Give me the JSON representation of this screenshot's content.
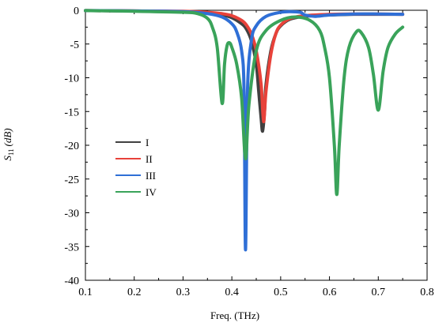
{
  "chart_data": {
    "type": "line",
    "title": "",
    "xlabel": "Freq. (THz)",
    "ylabel": {
      "main": "S",
      "sub": "11",
      "unit": "(dB)"
    },
    "xlim": [
      0.1,
      0.8
    ],
    "ylim": [
      -40,
      0
    ],
    "xticks": [
      0.1,
      0.2,
      0.3,
      0.4,
      0.5,
      0.6,
      0.7,
      0.8
    ],
    "yticks": [
      0,
      -5,
      -10,
      -15,
      -20,
      -25,
      -30,
      -35,
      -40
    ],
    "xtick_labels": [
      "0.1",
      "0.2",
      "0.3",
      "0.4",
      "0.5",
      "0.6",
      "0.7",
      "0.8"
    ],
    "ytick_labels": [
      "0",
      "-5",
      "-10",
      "-15",
      "-20",
      "-25",
      "-30",
      "-35",
      "-40"
    ],
    "grid": false,
    "legend_position": "left-center",
    "series": [
      {
        "name": "I",
        "color": "#404040",
        "points": [
          [
            0.1,
            -0.05
          ],
          [
            0.2,
            -0.1
          ],
          [
            0.3,
            -0.2
          ],
          [
            0.35,
            -0.4
          ],
          [
            0.38,
            -0.7
          ],
          [
            0.4,
            -1.1
          ],
          [
            0.42,
            -2.0
          ],
          [
            0.43,
            -2.8
          ],
          [
            0.44,
            -4.5
          ],
          [
            0.45,
            -8.0
          ],
          [
            0.455,
            -12.0
          ],
          [
            0.46,
            -16.0
          ],
          [
            0.463,
            -17.9
          ],
          [
            0.467,
            -15.0
          ],
          [
            0.47,
            -11.0
          ],
          [
            0.48,
            -6.0
          ],
          [
            0.49,
            -3.5
          ],
          [
            0.5,
            -2.3
          ],
          [
            0.52,
            -1.3
          ],
          [
            0.55,
            -0.9
          ],
          [
            0.6,
            -0.7
          ],
          [
            0.65,
            -0.6
          ],
          [
            0.7,
            -0.6
          ],
          [
            0.75,
            -0.6
          ]
        ]
      },
      {
        "name": "II",
        "color": "#e8423a",
        "points": [
          [
            0.1,
            -0.05
          ],
          [
            0.2,
            -0.1
          ],
          [
            0.3,
            -0.15
          ],
          [
            0.35,
            -0.3
          ],
          [
            0.38,
            -0.5
          ],
          [
            0.4,
            -0.8
          ],
          [
            0.42,
            -1.5
          ],
          [
            0.43,
            -2.2
          ],
          [
            0.44,
            -3.5
          ],
          [
            0.45,
            -6.0
          ],
          [
            0.46,
            -11.0
          ],
          [
            0.465,
            -16.5
          ],
          [
            0.47,
            -12.0
          ],
          [
            0.48,
            -6.5
          ],
          [
            0.49,
            -3.5
          ],
          [
            0.5,
            -2.2
          ],
          [
            0.52,
            -1.2
          ],
          [
            0.55,
            -0.8
          ],
          [
            0.6,
            -0.6
          ],
          [
            0.65,
            -0.55
          ],
          [
            0.7,
            -0.55
          ],
          [
            0.75,
            -0.6
          ]
        ]
      },
      {
        "name": "III",
        "color": "#2f6fd6",
        "points": [
          [
            0.1,
            -0.05
          ],
          [
            0.2,
            -0.1
          ],
          [
            0.3,
            -0.2
          ],
          [
            0.35,
            -0.5
          ],
          [
            0.38,
            -1.0
          ],
          [
            0.4,
            -2.0
          ],
          [
            0.41,
            -3.2
          ],
          [
            0.42,
            -6.0
          ],
          [
            0.425,
            -12.0
          ],
          [
            0.428,
            -35.5
          ],
          [
            0.432,
            -12.0
          ],
          [
            0.44,
            -4.5
          ],
          [
            0.45,
            -2.3
          ],
          [
            0.47,
            -0.9
          ],
          [
            0.5,
            -0.3
          ],
          [
            0.52,
            -0.2
          ],
          [
            0.54,
            -0.3
          ],
          [
            0.55,
            -0.7
          ],
          [
            0.57,
            -0.9
          ],
          [
            0.6,
            -0.7
          ],
          [
            0.65,
            -0.55
          ],
          [
            0.7,
            -0.55
          ],
          [
            0.75,
            -0.6
          ]
        ]
      },
      {
        "name": "IV",
        "color": "#3aa35a",
        "points": [
          [
            0.1,
            -0.05
          ],
          [
            0.2,
            -0.15
          ],
          [
            0.3,
            -0.3
          ],
          [
            0.33,
            -0.5
          ],
          [
            0.35,
            -1.2
          ],
          [
            0.36,
            -2.5
          ],
          [
            0.37,
            -5.5
          ],
          [
            0.38,
            -13.8
          ],
          [
            0.385,
            -8.0
          ],
          [
            0.39,
            -5.3
          ],
          [
            0.395,
            -4.8
          ],
          [
            0.4,
            -5.5
          ],
          [
            0.41,
            -8.0
          ],
          [
            0.42,
            -13.0
          ],
          [
            0.428,
            -22.0
          ],
          [
            0.435,
            -14.0
          ],
          [
            0.45,
            -6.0
          ],
          [
            0.47,
            -3.0
          ],
          [
            0.5,
            -1.5
          ],
          [
            0.53,
            -1.0
          ],
          [
            0.56,
            -1.5
          ],
          [
            0.58,
            -3.0
          ],
          [
            0.59,
            -5.5
          ],
          [
            0.6,
            -10.0
          ],
          [
            0.61,
            -20.0
          ],
          [
            0.615,
            -27.3
          ],
          [
            0.62,
            -20.0
          ],
          [
            0.63,
            -10.0
          ],
          [
            0.64,
            -5.5
          ],
          [
            0.655,
            -3.2
          ],
          [
            0.665,
            -3.3
          ],
          [
            0.68,
            -5.5
          ],
          [
            0.69,
            -9.5
          ],
          [
            0.7,
            -14.8
          ],
          [
            0.71,
            -9.0
          ],
          [
            0.72,
            -5.5
          ],
          [
            0.735,
            -3.5
          ],
          [
            0.75,
            -2.5
          ]
        ]
      }
    ]
  }
}
